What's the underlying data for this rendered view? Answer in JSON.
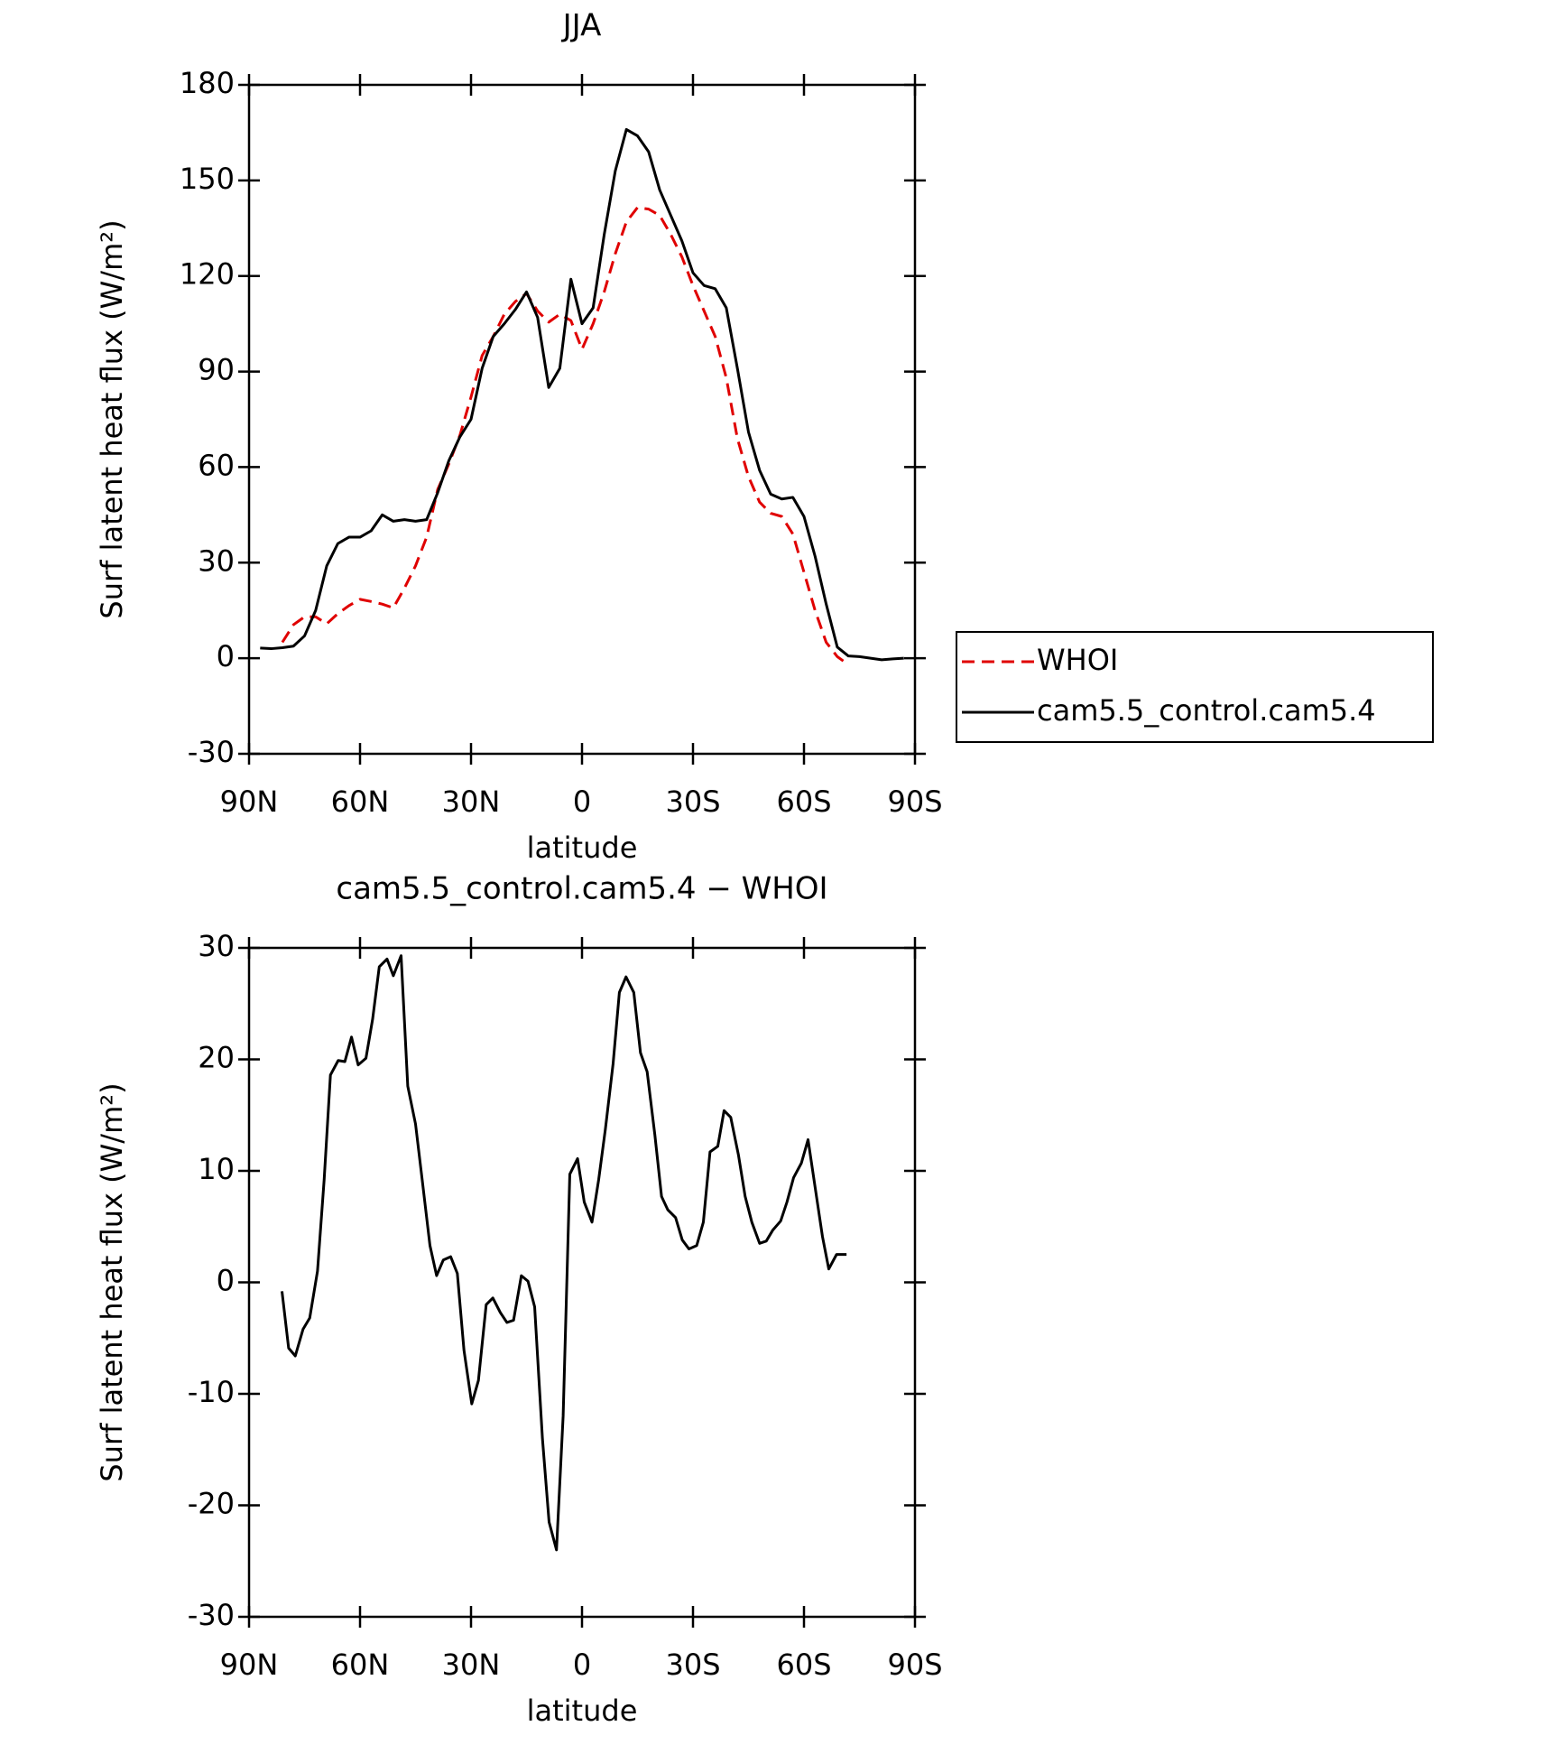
{
  "chart_data": [
    {
      "type": "line",
      "title": "JJA",
      "xlabel": "latitude",
      "ylabel": "Surf latent heat flux (W/m²)",
      "xlim": [
        90,
        -90
      ],
      "ylim": [
        -30,
        180
      ],
      "xticks": [
        {
          "value": 90,
          "label": "90N"
        },
        {
          "value": 60,
          "label": "60N"
        },
        {
          "value": 30,
          "label": "30N"
        },
        0,
        {
          "value": -30,
          "label": "30S"
        },
        {
          "value": -60,
          "label": "60S"
        },
        {
          "value": -90,
          "label": "90S"
        }
      ],
      "yticks": [
        -30,
        0,
        30,
        60,
        90,
        120,
        150,
        180
      ],
      "legend": "right",
      "x": [
        87,
        84,
        81,
        78,
        75,
        72,
        69,
        66,
        63,
        60,
        57,
        54,
        51,
        48,
        45,
        42,
        39,
        36,
        33,
        30,
        27,
        24,
        21,
        18,
        15,
        12,
        9,
        6,
        3,
        0,
        -3,
        -6,
        -9,
        -12,
        -15,
        -18,
        -21,
        -24,
        -27,
        -30,
        -33,
        -36,
        -39,
        -42,
        -45,
        -48,
        -51,
        -54,
        -57,
        -60,
        -63,
        -66,
        -69,
        -72,
        -75,
        -78,
        -81,
        -84,
        -87
      ],
      "series": [
        {
          "name": "WHOI",
          "color": "#e00000",
          "linestyle": "dashed",
          "values": [
            null,
            null,
            5,
            10.5,
            13,
            13,
            10.8,
            14,
            16.5,
            18.5,
            17.8,
            17,
            15.8,
            22,
            29,
            38,
            53,
            61,
            70,
            82,
            95,
            101,
            108,
            112,
            114.5,
            109,
            105.5,
            108,
            106,
            97,
            105,
            115,
            127,
            137,
            141.5,
            141,
            139,
            133,
            126,
            117,
            109,
            101,
            88,
            69,
            57,
            49,
            45.5,
            44.5,
            39,
            27,
            15,
            5,
            0.5,
            -2,
            null,
            null,
            null,
            null,
            null
          ]
        },
        {
          "name": "cam5.5_control.cam5.4",
          "color": "#000000",
          "linestyle": "solid",
          "values": [
            3.2,
            3,
            3.3,
            3.8,
            7,
            15,
            29,
            36,
            38,
            38,
            40,
            45,
            43,
            43.5,
            43,
            43.5,
            52,
            62,
            69.5,
            75,
            91,
            101,
            105,
            109.5,
            115,
            107,
            85,
            91,
            119,
            105,
            110,
            133,
            153,
            166,
            164,
            159,
            147,
            139,
            131,
            121,
            117,
            116,
            110,
            91,
            71,
            59,
            51.5,
            50,
            50.5,
            44.5,
            32,
            17,
            3.5,
            0.7,
            0.5,
            0,
            -0.5,
            -0.2,
            0
          ]
        }
      ]
    },
    {
      "type": "line",
      "title": "cam5.5_control.cam5.4 − WHOI",
      "xlabel": "latitude",
      "ylabel": "Surf latent heat flux (W/m²)",
      "xlim": [
        90,
        -90
      ],
      "ylim": [
        -30,
        30
      ],
      "xticks": [
        {
          "value": 90,
          "label": "90N"
        },
        {
          "value": 60,
          "label": "60N"
        },
        {
          "value": 30,
          "label": "30N"
        },
        0,
        {
          "value": -30,
          "label": "30S"
        },
        {
          "value": -60,
          "label": "60S"
        },
        {
          "value": -90,
          "label": "90S"
        }
      ],
      "yticks": [
        -30,
        -20,
        -10,
        0,
        10,
        20,
        30
      ],
      "x": [
        81.1,
        79.3,
        77.5,
        75.4,
        73.6,
        71.5,
        69.7,
        68.0,
        65.9,
        64.1,
        62.3,
        60.5,
        58.4,
        56.6,
        54.8,
        52.7,
        51.0,
        48.9,
        47.1,
        45.0,
        43.2,
        41.1,
        39.3,
        37.5,
        35.5,
        33.7,
        31.9,
        29.8,
        28.0,
        25.9,
        24.1,
        22.1,
        20.3,
        18.5,
        16.4,
        14.6,
        12.8,
        10.7,
        8.9,
        6.9,
        5.1,
        3.3,
        1.2,
        -0.6,
        -2.7,
        -4.5,
        -6.3,
        -8.4,
        -10.1,
        -11.9,
        -14.0,
        -15.8,
        -17.6,
        -19.7,
        -21.5,
        -23.2,
        -25.3,
        -27.1,
        -28.9,
        -31.0,
        -32.8,
        -34.6,
        -36.7,
        -38.4,
        -40.2,
        -42.3,
        -44.1,
        -45.9,
        -48.0,
        -49.8,
        -51.6,
        -53.7,
        -55.4,
        -57.2,
        -59.3,
        -61.1,
        -63.2,
        -65.0,
        -66.7,
        -68.8,
        -71.5
      ],
      "series": [
        {
          "color": "#000000",
          "linestyle": "solid",
          "values": [
            -0.8,
            -5.9,
            -6.6,
            -4.2,
            -3.2,
            1,
            9.2,
            18.6,
            19.9,
            19.8,
            22,
            19.5,
            20.1,
            23.6,
            28.3,
            29,
            27.5,
            29.3,
            17.6,
            14.2,
            9.2,
            3.3,
            0.6,
            2,
            2.3,
            0.8,
            -6.1,
            -10.9,
            -8.8,
            -2,
            -1.4,
            -2.7,
            -3.6,
            -3.4,
            0.6,
            0.1,
            -2.2,
            -14,
            -21.5,
            -24,
            -12,
            9.7,
            11.1,
            7.2,
            5.4,
            9.2,
            13.7,
            19.6,
            26,
            27.4,
            26,
            20.6,
            18.9,
            13.2,
            7.7,
            6.5,
            5.8,
            3.8,
            3,
            3.3,
            5.4,
            11.7,
            12.2,
            15.4,
            14.8,
            11.4,
            7.7,
            5.4,
            3.5,
            3.7,
            4.7,
            5.5,
            7.2,
            9.4,
            10.7,
            12.8,
            8.1,
            4.1,
            1.2,
            2.5,
            2.5
          ]
        }
      ]
    }
  ]
}
